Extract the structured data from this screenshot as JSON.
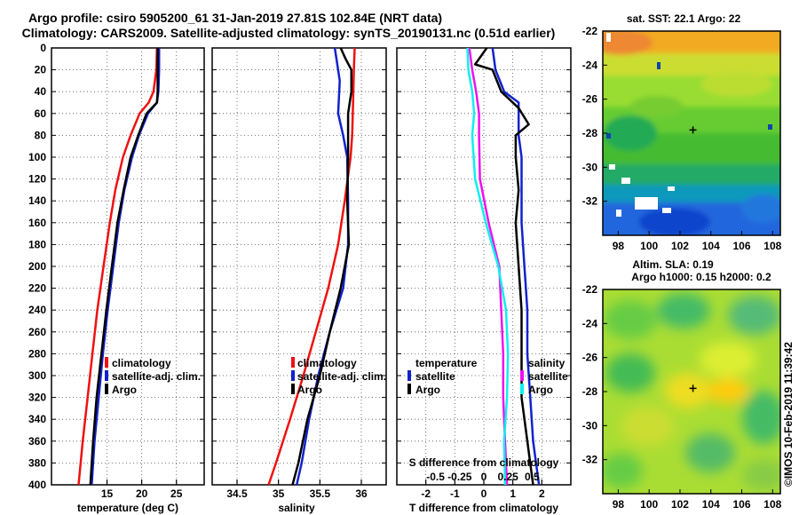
{
  "title": {
    "line1": "Argo profile: csiro 5905200_61 31-Jan-2019 27.81S 102.84E (NRT data)",
    "line2": "Climatology: CARS2009. Satellite-adjusted climatology: synTS_20190131.nc (0.51d earlier)"
  },
  "colors": {
    "climatology": "#ee1111",
    "satellite": "#1122cc",
    "argo": "#000000",
    "salinity_satellite": "#ee11ee",
    "salinity_argo": "#11eeee"
  },
  "depth_ticks": [
    "0",
    "20",
    "40",
    "60",
    "80",
    "100",
    "120",
    "140",
    "160",
    "180",
    "200",
    "220",
    "240",
    "260",
    "280",
    "300",
    "320",
    "340",
    "360",
    "380",
    "400"
  ],
  "chart_data": [
    {
      "type": "line",
      "title": "",
      "xlabel": "temperature (deg C)",
      "ylabel": "",
      "xlim": [
        7,
        29
      ],
      "ylim": [
        400,
        0
      ],
      "x_ticks": [
        "15",
        "20",
        "25"
      ],
      "legend": [
        "climatology",
        "satellite-adj. clim.",
        "Argo"
      ],
      "legend_placement": "lower-right",
      "series": [
        {
          "name": "climatology",
          "depth": [
            0,
            20,
            40,
            50,
            60,
            80,
            100,
            130,
            160,
            200,
            240,
            280,
            320,
            360,
            400
          ],
          "values": [
            22.2,
            22.1,
            21.7,
            21,
            19.7,
            18.4,
            17.3,
            16.2,
            15.4,
            14.5,
            13.6,
            12.9,
            12.2,
            11.5,
            10.9
          ]
        },
        {
          "name": "satellite-adj. clim.",
          "depth": [
            0,
            20,
            40,
            50,
            60,
            80,
            100,
            130,
            160,
            200,
            240,
            280,
            320,
            360,
            400
          ],
          "values": [
            22.5,
            22.5,
            22.4,
            22.2,
            20.9,
            19.6,
            18.6,
            17.5,
            16.7,
            15.9,
            15.1,
            14.4,
            13.8,
            13.2,
            12.8
          ]
        },
        {
          "name": "Argo",
          "depth": [
            0,
            20,
            40,
            50,
            60,
            80,
            100,
            130,
            160,
            200,
            240,
            280,
            320,
            360,
            400
          ],
          "values": [
            22.3,
            22.3,
            22.3,
            22.2,
            20.7,
            19.5,
            18.4,
            17.4,
            16.5,
            15.7,
            14.9,
            14.2,
            13.5,
            13.0,
            12.6
          ]
        }
      ]
    },
    {
      "type": "line",
      "title": "",
      "xlabel": "salinity",
      "ylabel": "",
      "xlim": [
        34.2,
        36.3
      ],
      "ylim": [
        400,
        0
      ],
      "x_ticks": [
        "34.5",
        "35",
        "35.5",
        "36"
      ],
      "legend": [
        "climatology",
        "satellite-adj. clim.",
        "Argo"
      ],
      "legend_placement": "lower-right",
      "series": [
        {
          "name": "climatology",
          "depth": [
            0,
            20,
            50,
            80,
            100,
            140,
            180,
            220,
            260,
            300,
            340,
            380,
            400
          ],
          "values": [
            35.92,
            35.91,
            35.9,
            35.89,
            35.87,
            35.8,
            35.72,
            35.6,
            35.45,
            35.3,
            35.14,
            34.97,
            34.88
          ]
        },
        {
          "name": "satellite-adj. clim.",
          "depth": [
            0,
            10,
            30,
            60,
            80,
            100,
            140,
            180,
            220,
            260,
            300,
            340,
            380,
            400
          ],
          "values": [
            35.68,
            35.7,
            35.74,
            35.72,
            35.78,
            35.83,
            35.84,
            35.84,
            35.78,
            35.62,
            35.48,
            35.37,
            35.28,
            35.22
          ]
        },
        {
          "name": "Argo",
          "depth": [
            0,
            10,
            20,
            40,
            60,
            80,
            100,
            140,
            180,
            220,
            260,
            300,
            340,
            380,
            400
          ],
          "values": [
            35.75,
            35.81,
            35.88,
            35.88,
            35.84,
            35.84,
            35.84,
            35.83,
            35.85,
            35.75,
            35.62,
            35.5,
            35.35,
            35.24,
            35.17
          ]
        }
      ]
    },
    {
      "type": "line",
      "title": "",
      "xlabel": "T difference from climatology",
      "xlabel2": "S difference from climatology",
      "ylabel": "",
      "xlim": [
        -3,
        3
      ],
      "ylim": [
        400,
        0
      ],
      "x_ticks": [
        "-2",
        "-1",
        "0",
        "1",
        "2"
      ],
      "x2_ticks": [
        "-0.5",
        "-0.25",
        "0",
        "0.25",
        "0.5"
      ],
      "legend": [
        "temperature",
        "satellite",
        "Argo",
        "salinity",
        "satellite",
        "Argo"
      ],
      "legend_placement": "lower-center",
      "series": [
        {
          "name": "temperature satellite",
          "depth": [
            0,
            20,
            40,
            50,
            60,
            80,
            100,
            130,
            160,
            200,
            240,
            280,
            320,
            360,
            400
          ],
          "values": [
            0.3,
            0.4,
            0.7,
            1.2,
            1.2,
            1.2,
            1.3,
            1.3,
            1.3,
            1.4,
            1.5,
            1.5,
            1.6,
            1.7,
            1.9
          ]
        },
        {
          "name": "temperature Argo",
          "depth": [
            0,
            15,
            20,
            40,
            55,
            70,
            80,
            100,
            130,
            160,
            200,
            240,
            280,
            320,
            360,
            400
          ],
          "values": [
            0.1,
            -0.3,
            0.3,
            0.6,
            1.2,
            1.55,
            1.1,
            1.1,
            1.2,
            1.1,
            1.2,
            1.3,
            1.3,
            1.3,
            1.5,
            1.7
          ]
        },
        {
          "name": "salinity satellite",
          "depth": [
            0,
            20,
            40,
            60,
            80,
            120,
            160,
            200,
            240,
            280,
            320,
            360,
            400
          ],
          "values": [
            -0.15,
            -0.12,
            -0.08,
            -0.05,
            -0.05,
            -0.04,
            0.05,
            0.16,
            0.18,
            0.2,
            0.2,
            0.22,
            0.24
          ]
        },
        {
          "name": "salinity Argo",
          "depth": [
            0,
            20,
            40,
            60,
            80,
            120,
            160,
            200,
            240,
            280,
            320,
            360,
            400
          ],
          "values": [
            -0.17,
            -0.16,
            -0.12,
            -0.1,
            -0.12,
            -0.09,
            0.02,
            0.15,
            0.23,
            0.25,
            0.24,
            0.21,
            0.22
          ]
        }
      ]
    },
    {
      "type": "heatmap",
      "title": "sat. SST: 22.1  Argo: 22",
      "xlim": [
        97,
        108.5
      ],
      "ylim": [
        -34,
        -22
      ],
      "x_ticks": [
        "98",
        "100",
        "102",
        "104",
        "106",
        "108"
      ],
      "y_ticks": [
        "-22",
        "-24",
        "-26",
        "-28",
        "-30",
        "-32"
      ],
      "marker": {
        "lon": 102.84,
        "lat": -27.81
      }
    },
    {
      "type": "heatmap",
      "title": "Altim. SLA: 0.19",
      "subtitle": "Argo h1000: 0.15 h2000: 0.2",
      "xlim": [
        97,
        108.5
      ],
      "ylim": [
        -34,
        -22
      ],
      "x_ticks": [
        "98",
        "100",
        "102",
        "104",
        "106",
        "108"
      ],
      "y_ticks": [
        "-22",
        "-24",
        "-26",
        "-28",
        "-30",
        "-32"
      ],
      "marker": {
        "lon": 102.84,
        "lat": -27.81
      }
    }
  ],
  "watermark": "©IMOS 10-Feb-2019 11:39:42"
}
